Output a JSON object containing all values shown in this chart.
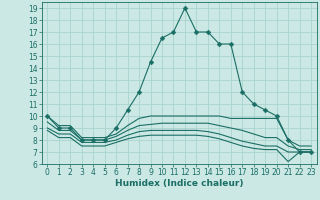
{
  "lines": [
    {
      "x": [
        0,
        1,
        2,
        3,
        4,
        5,
        6,
        7,
        8,
        9,
        10,
        11,
        12,
        13,
        14,
        15,
        16,
        17,
        18,
        19,
        20,
        21,
        22,
        23
      ],
      "y": [
        10,
        9,
        9,
        8,
        8,
        8,
        9,
        10.5,
        12,
        14.5,
        16.5,
        17,
        19,
        17,
        17,
        16,
        16,
        12,
        11,
        10.5,
        10,
        8,
        7,
        7
      ],
      "marker": true,
      "lw": 0.8,
      "ms": 2.5
    },
    {
      "x": [
        0,
        1,
        2,
        3,
        4,
        5,
        6,
        7,
        8,
        9,
        10,
        11,
        12,
        13,
        14,
        15,
        16,
        17,
        18,
        19,
        20,
        21,
        22,
        23
      ],
      "y": [
        10,
        9.2,
        9.2,
        8.2,
        8.2,
        8.2,
        8.5,
        9.2,
        9.8,
        10,
        10,
        10,
        10,
        10,
        10,
        10,
        9.8,
        9.8,
        9.8,
        9.8,
        9.8,
        8.0,
        7.5,
        7.5
      ],
      "marker": false,
      "lw": 0.8,
      "ms": 0
    },
    {
      "x": [
        0,
        1,
        2,
        3,
        4,
        5,
        6,
        7,
        8,
        9,
        10,
        11,
        12,
        13,
        14,
        15,
        16,
        17,
        18,
        19,
        20,
        21,
        22,
        23
      ],
      "y": [
        9.5,
        8.8,
        8.8,
        8.0,
        8.0,
        8.0,
        8.3,
        8.8,
        9.2,
        9.3,
        9.4,
        9.4,
        9.4,
        9.4,
        9.4,
        9.2,
        9.0,
        8.8,
        8.5,
        8.2,
        8.2,
        7.5,
        7.2,
        7.2
      ],
      "marker": false,
      "lw": 0.8,
      "ms": 0
    },
    {
      "x": [
        0,
        1,
        2,
        3,
        4,
        5,
        6,
        7,
        8,
        9,
        10,
        11,
        12,
        13,
        14,
        15,
        16,
        17,
        18,
        19,
        20,
        21,
        22,
        23
      ],
      "y": [
        9.0,
        8.5,
        8.5,
        7.8,
        7.8,
        7.8,
        8.0,
        8.4,
        8.7,
        8.8,
        8.8,
        8.8,
        8.8,
        8.8,
        8.7,
        8.5,
        8.2,
        7.9,
        7.7,
        7.5,
        7.5,
        7.0,
        7.0,
        7.0
      ],
      "marker": false,
      "lw": 0.8,
      "ms": 0
    },
    {
      "x": [
        0,
        1,
        2,
        3,
        4,
        5,
        6,
        7,
        8,
        9,
        10,
        11,
        12,
        13,
        14,
        15,
        16,
        17,
        18,
        19,
        20,
        21,
        22,
        23
      ],
      "y": [
        8.8,
        8.2,
        8.2,
        7.5,
        7.5,
        7.5,
        7.8,
        8.1,
        8.3,
        8.4,
        8.4,
        8.4,
        8.4,
        8.4,
        8.3,
        8.1,
        7.8,
        7.5,
        7.3,
        7.2,
        7.2,
        6.2,
        7.0,
        7.0
      ],
      "marker": false,
      "lw": 0.8,
      "ms": 0
    }
  ],
  "bg_color": "#cce8e4",
  "grid_color": "#aad4cf",
  "line_color": "#1a6e65",
  "xlabel": "Humidex (Indice chaleur)",
  "xlabel_fontsize": 6.5,
  "xlim": [
    -0.5,
    23.5
  ],
  "ylim": [
    6,
    19.5
  ],
  "yticks": [
    6,
    7,
    8,
    9,
    10,
    11,
    12,
    13,
    14,
    15,
    16,
    17,
    18,
    19
  ],
  "xticks": [
    0,
    1,
    2,
    3,
    4,
    5,
    6,
    7,
    8,
    9,
    10,
    11,
    12,
    13,
    14,
    15,
    16,
    17,
    18,
    19,
    20,
    21,
    22,
    23
  ],
  "tick_fontsize": 5.5
}
